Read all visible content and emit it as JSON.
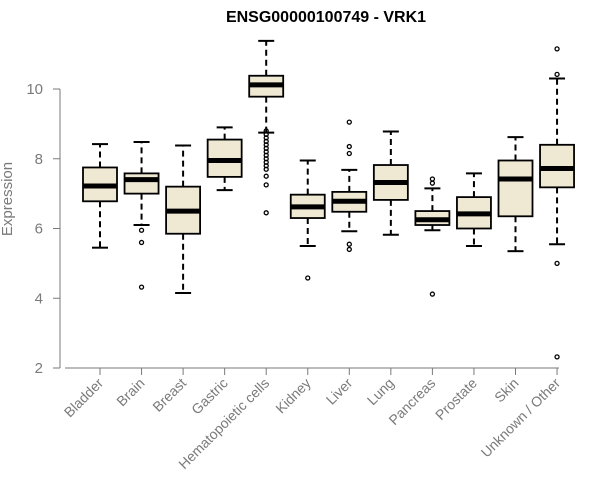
{
  "chart_data": {
    "type": "boxplot",
    "title": "ENSG00000100749 - VRK1",
    "xlabel": "",
    "ylabel": "Expression",
    "ylim": [
      2,
      11.5
    ],
    "yticks": [
      "2",
      "4",
      "6",
      "8",
      "10"
    ],
    "colors": {
      "box_fill": "#efe8d2",
      "box_stroke": "#000000",
      "axis": "#7a7a7a",
      "text": "#7a7a7a"
    },
    "categories": [
      "Bladder",
      "Brain",
      "Breast",
      "Gastric",
      "Hematopoietic cells",
      "Kidney",
      "Liver",
      "Lung",
      "Pancreas",
      "Prostate",
      "Skin",
      "Unknown / Other"
    ],
    "boxes": [
      {
        "name": "Bladder",
        "whisker_low": 5.45,
        "q1": 6.78,
        "median": 7.22,
        "q3": 7.75,
        "whisker_high": 8.42,
        "outliers": []
      },
      {
        "name": "Brain",
        "whisker_low": 6.1,
        "q1": 7.0,
        "median": 7.4,
        "q3": 7.58,
        "whisker_high": 8.48,
        "outliers": [
          5.95,
          5.6,
          4.32
        ]
      },
      {
        "name": "Breast",
        "whisker_low": 4.15,
        "q1": 5.85,
        "median": 6.5,
        "q3": 7.2,
        "whisker_high": 8.38,
        "outliers": []
      },
      {
        "name": "Gastric",
        "whisker_low": 7.1,
        "q1": 7.48,
        "median": 7.95,
        "q3": 8.55,
        "whisker_high": 8.9,
        "outliers": []
      },
      {
        "name": "Hematopoietic cells",
        "whisker_low": 8.75,
        "q1": 9.78,
        "median": 10.12,
        "q3": 10.38,
        "whisker_high": 11.38,
        "outliers": [
          8.8,
          8.7,
          8.6,
          8.5,
          8.4,
          8.3,
          8.2,
          8.1,
          8.0,
          7.9,
          7.8,
          7.7,
          7.5,
          7.25,
          6.45
        ]
      },
      {
        "name": "Kidney",
        "whisker_low": 5.5,
        "q1": 6.3,
        "median": 6.62,
        "q3": 6.97,
        "whisker_high": 7.95,
        "outliers": [
          4.58
        ]
      },
      {
        "name": "Liver",
        "whisker_low": 5.92,
        "q1": 6.48,
        "median": 6.78,
        "q3": 7.05,
        "whisker_high": 7.68,
        "outliers": [
          9.05,
          8.35,
          8.15,
          5.55,
          5.4
        ]
      },
      {
        "name": "Lung",
        "whisker_low": 5.82,
        "q1": 6.82,
        "median": 7.32,
        "q3": 7.82,
        "whisker_high": 8.78,
        "outliers": []
      },
      {
        "name": "Pancreas",
        "whisker_low": 5.95,
        "q1": 6.1,
        "median": 6.25,
        "q3": 6.5,
        "whisker_high": 7.15,
        "outliers": [
          7.42,
          7.3,
          4.12
        ]
      },
      {
        "name": "Prostate",
        "whisker_low": 5.5,
        "q1": 6.0,
        "median": 6.42,
        "q3": 6.9,
        "whisker_high": 7.58,
        "outliers": []
      },
      {
        "name": "Skin",
        "whisker_low": 5.35,
        "q1": 6.35,
        "median": 7.42,
        "q3": 7.95,
        "whisker_high": 8.62,
        "outliers": []
      },
      {
        "name": "Unknown / Other",
        "whisker_low": 5.55,
        "q1": 7.18,
        "median": 7.72,
        "q3": 8.4,
        "whisker_high": 10.3,
        "outliers": [
          11.15,
          10.42,
          5.0,
          2.32
        ]
      }
    ]
  }
}
